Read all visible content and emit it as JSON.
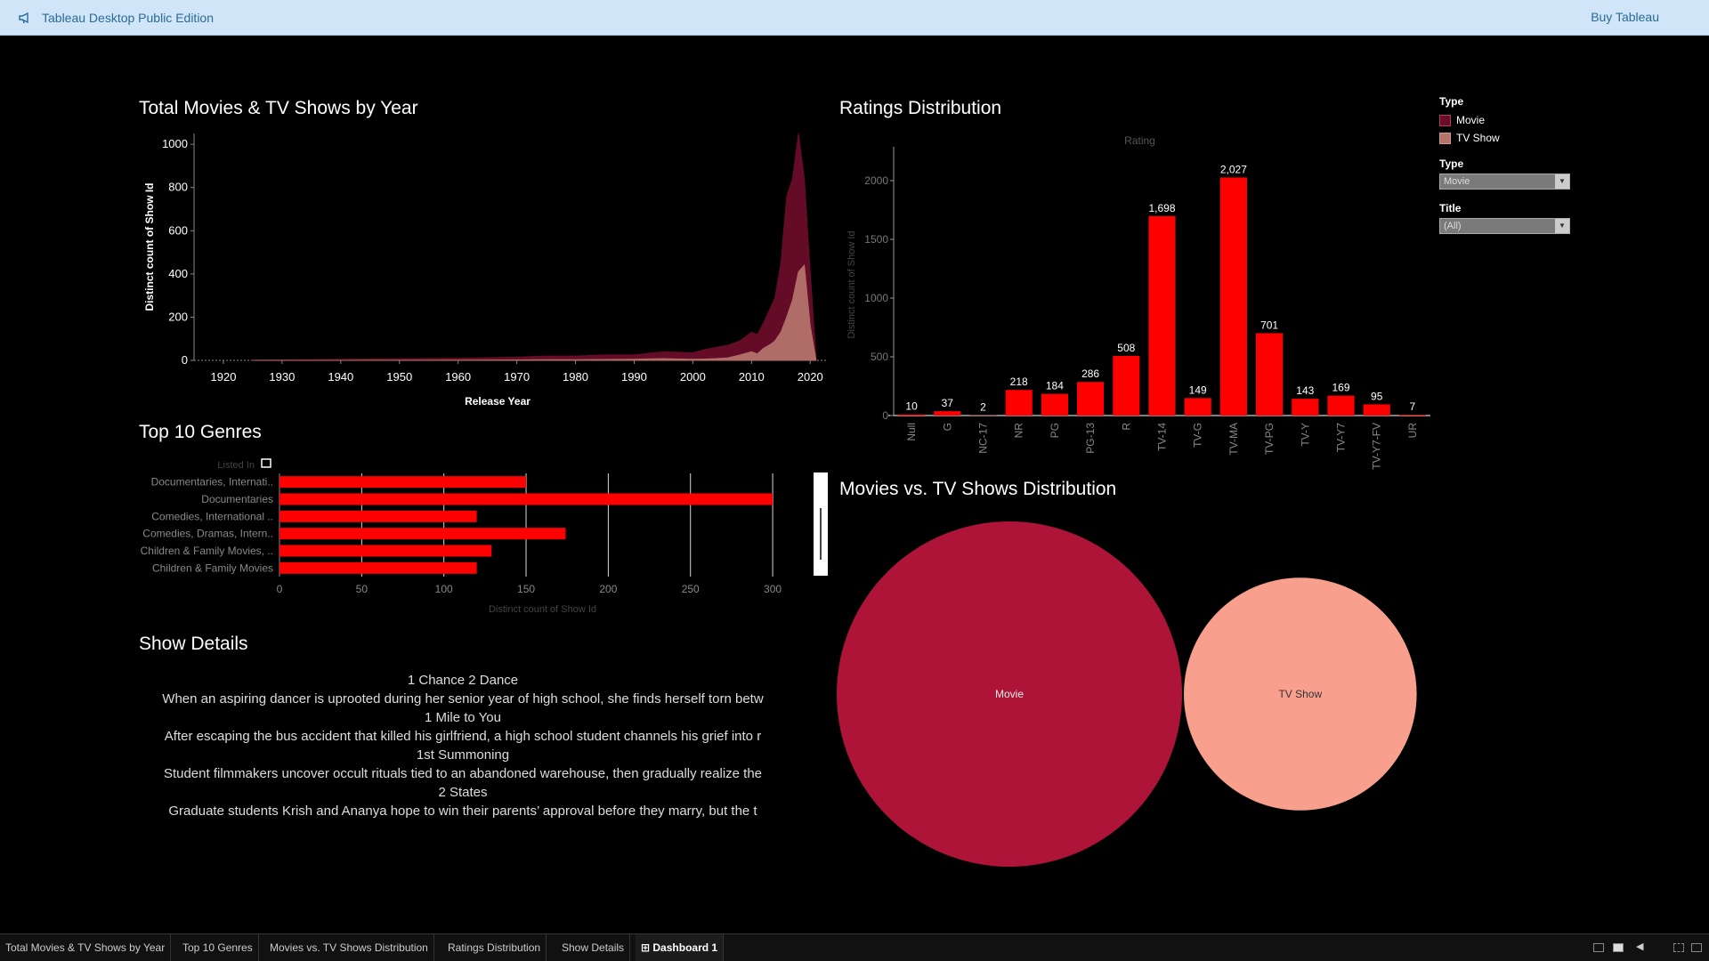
{
  "app": {
    "title": "Tableau Desktop Public Edition",
    "buy_label": "Buy Tableau"
  },
  "titles": {
    "year_chart": "Total Movies & TV Shows by Year",
    "ratings_chart": "Ratings Distribution",
    "genres_chart": "Top 10 Genres",
    "details": "Show Details",
    "distribution_chart": "Movies vs. TV Shows Distribution"
  },
  "legend": {
    "header": "Type",
    "items": [
      {
        "label": "Movie",
        "color": "#6a0d2a"
      },
      {
        "label": "TV Show",
        "color": "#b5736b"
      }
    ],
    "filters": [
      {
        "label": "Type",
        "value": "Movie"
      },
      {
        "label": "Title",
        "value": "(All)"
      }
    ]
  },
  "details": {
    "items": [
      "1 Chance 2 Dance",
      "When an aspiring dancer is uprooted during her senior year of high school, she finds herself torn betw",
      "1 Mile to You",
      "After escaping the bus accident that killed his girlfriend, a high school student channels his grief into r",
      "1st Summoning",
      "Student filmmakers uncover occult rituals tied to an abandoned warehouse, then gradually realize the",
      "2 States",
      "Graduate students Krish and Ananya hope to win their parents’ approval before they marry, but the t"
    ]
  },
  "tabs": [
    "Total Movies & TV Shows by Year",
    "Top 10 Genres",
    "Movies vs. TV Shows Distribution",
    "Ratings Distribution",
    "Show Details",
    "Dashboard 1"
  ],
  "chart_data": [
    {
      "type": "area",
      "xlabel": "Release Year",
      "ylabel": "Distinct count of Show Id",
      "xlim": [
        1915,
        2023
      ],
      "ylim": [
        0,
        1050
      ],
      "x_ticks": [
        1920,
        1930,
        1940,
        1950,
        1960,
        1970,
        1980,
        1990,
        2000,
        2010,
        2020
      ],
      "y_ticks": [
        0,
        200,
        400,
        600,
        800,
        1000
      ],
      "x": [
        1925,
        1940,
        1960,
        1970,
        1975,
        1980,
        1985,
        1990,
        1995,
        2000,
        2002,
        2004,
        2006,
        2008,
        2010,
        2011,
        2012,
        2013,
        2014,
        2015,
        2016,
        2017,
        2018,
        2019,
        2020,
        2021
      ],
      "series": [
        {
          "name": "Movie",
          "color": "#6a0d2a",
          "values": [
            1,
            5,
            10,
            15,
            20,
            20,
            25,
            25,
            40,
            35,
            50,
            60,
            70,
            90,
            130,
            120,
            170,
            230,
            290,
            450,
            760,
            840,
            1050,
            840,
            410,
            10
          ]
        },
        {
          "name": "TV Show",
          "color": "#b5736b",
          "values": [
            0,
            0,
            1,
            2,
            3,
            3,
            4,
            5,
            8,
            5,
            6,
            8,
            12,
            25,
            40,
            30,
            55,
            70,
            90,
            130,
            200,
            280,
            410,
            440,
            160,
            0
          ]
        }
      ]
    },
    {
      "type": "bar",
      "xlabel": "Rating",
      "ylabel": "Distinct count of Show Id",
      "ylim": [
        0,
        2250
      ],
      "y_ticks": [
        0,
        500,
        1000,
        1500,
        2000
      ],
      "categories": [
        "Null",
        "G",
        "NC-17",
        "NR",
        "PG",
        "PG-13",
        "R",
        "TV-14",
        "TV-G",
        "TV-MA",
        "TV-PG",
        "TV-Y",
        "TV-Y7",
        "TV-Y7-FV",
        "UR"
      ],
      "values": [
        10,
        37,
        2,
        218,
        184,
        286,
        508,
        1698,
        149,
        2027,
        701,
        143,
        169,
        95,
        7
      ],
      "data_labels": [
        "10",
        "37",
        "2",
        "218",
        "184",
        "286",
        "508",
        "1,698",
        "149",
        "2,027",
        "701",
        "143",
        "169",
        "95",
        "7"
      ],
      "color": "#ff0000"
    },
    {
      "type": "bar",
      "orientation": "horizontal",
      "ylabel": "Listed In",
      "xlabel": "Distinct count of Show Id",
      "xlim": [
        0,
        320
      ],
      "x_ticks": [
        0,
        50,
        100,
        150,
        200,
        250,
        300
      ],
      "categories": [
        "Documentaries, Internati..",
        "Documentaries",
        "Comedies, International ..",
        "Comedies, Dramas, Intern..",
        "Children & Family Movies, ..",
        "Children & Family Movies"
      ],
      "values": [
        150,
        300,
        120,
        174,
        129,
        120
      ],
      "color": "#ff0000"
    },
    {
      "type": "bubble",
      "series": [
        {
          "name": "Movie",
          "color": "#ae1438",
          "weight": 2.2
        },
        {
          "name": "TV Show",
          "color": "#f8a08d",
          "weight": 1
        }
      ]
    }
  ]
}
